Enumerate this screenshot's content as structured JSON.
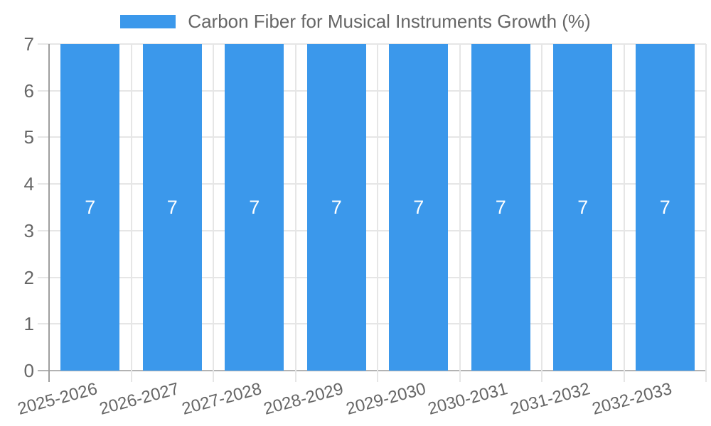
{
  "legend": {
    "label": "Carbon Fiber for Musical Instruments Growth (%)"
  },
  "colors": {
    "bar": "#3b98eb",
    "grid_light": "#e6e6e6",
    "axis_vertical_dark": "#9e9e9e",
    "baseline": "#b3b3b3",
    "text": "#666666",
    "value_label": "#ffffff",
    "background": "#ffffff"
  },
  "chart_data": {
    "type": "bar",
    "title": "Carbon Fiber for Musical Instruments Growth (%)",
    "legend_position": "top",
    "categories": [
      "2025-2026",
      "2026-2027",
      "2027-2028",
      "2028-2029",
      "2029-2030",
      "2030-2031",
      "2031-2032",
      "2032-2033"
    ],
    "series": [
      {
        "name": "Carbon Fiber for Musical Instruments Growth (%)",
        "color": "#3b98eb",
        "values": [
          7,
          7,
          7,
          7,
          7,
          7,
          7,
          7
        ]
      }
    ],
    "value_labels": [
      "7",
      "7",
      "7",
      "7",
      "7",
      "7",
      "7",
      "7"
    ],
    "xlabel": "",
    "ylabel": "",
    "ylim": [
      0,
      7
    ],
    "yticks": [
      0,
      1,
      2,
      3,
      4,
      5,
      6,
      7
    ],
    "grid": true,
    "x_tick_rotation_deg": -15,
    "show_value_labels": true
  }
}
